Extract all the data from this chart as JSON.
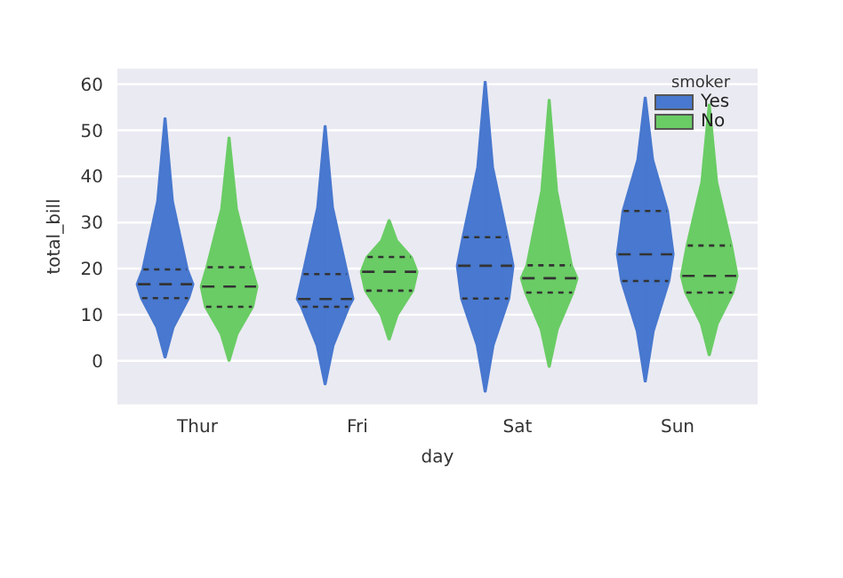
{
  "chart_data": {
    "type": "box",
    "xlabel": "day",
    "ylabel": "total_bill",
    "legend_title": "smoker",
    "legend": "top right",
    "grid": "y",
    "categories": [
      "Thur",
      "Fri",
      "Sat",
      "Sun"
    ],
    "ylim": [
      -9.7,
      63.6
    ],
    "yticks": [
      0,
      10,
      20,
      30,
      40,
      50,
      60
    ],
    "series": [
      {
        "name": "Yes",
        "color": "#4878cf",
        "boxes": [
          {
            "low": 0.7,
            "q1": 13.6,
            "median": 16.6,
            "q3": 19.8,
            "high": 52.6
          },
          {
            "low": -5.1,
            "q1": 11.7,
            "median": 13.4,
            "q3": 18.8,
            "high": 50.9
          },
          {
            "low": -6.7,
            "q1": 13.5,
            "median": 20.6,
            "q3": 26.8,
            "high": 60.5
          },
          {
            "low": -4.5,
            "q1": 17.3,
            "median": 23.1,
            "q3": 32.5,
            "high": 57.1
          }
        ]
      },
      {
        "name": "No",
        "color": "#6acc65",
        "boxes": [
          {
            "low": 0,
            "q1": 11.7,
            "median": 16.1,
            "q3": 20.3,
            "high": 48.4
          },
          {
            "low": 4.6,
            "q1": 15.2,
            "median": 19.3,
            "q3": 22.5,
            "high": 30.5
          },
          {
            "low": -1.3,
            "q1": 14.8,
            "median": 17.9,
            "q3": 20.7,
            "high": 56.6
          },
          {
            "low": 1.2,
            "q1": 14.8,
            "median": 18.4,
            "q3": 25,
            "high": 55.6
          }
        ]
      }
    ]
  }
}
